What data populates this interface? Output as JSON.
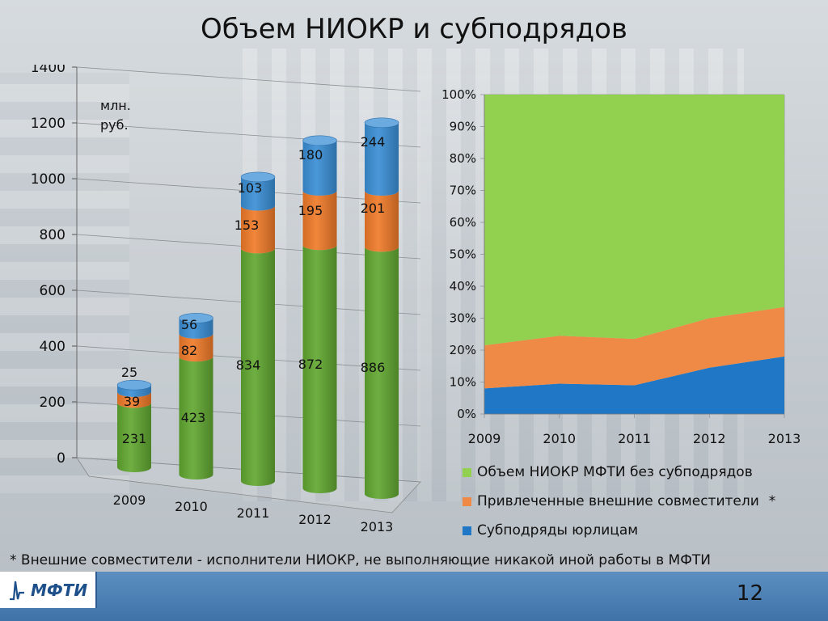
{
  "slide": {
    "title": "Объем НИОКР и субподрядов",
    "footnote": "* Внешние совместители - исполнители НИОКР, не выполняющие никакой иной работы в МФТИ",
    "page_number": "12",
    "logo_text": "МФТИ"
  },
  "colors": {
    "green": "#62a832",
    "orange": "#f07b2a",
    "blue": "#3b8fd6",
    "area_green": "#92d050",
    "area_orange": "#ee8a45",
    "area_blue": "#1f77c6"
  },
  "chart_data": [
    {
      "type": "bar",
      "stacked": true,
      "style": "3d-cylinder",
      "categories": [
        "2009",
        "2010",
        "2011",
        "2012",
        "2013"
      ],
      "series": [
        {
          "values": [
            231,
            423,
            834,
            872,
            886
          ],
          "color": "#62a832"
        },
        {
          "values": [
            39,
            82,
            153,
            195,
            201
          ],
          "color": "#f07b2a"
        },
        {
          "values": [
            25,
            56,
            103,
            180,
            244
          ],
          "color": "#3b8fd6"
        }
      ],
      "unit_label": "млн.\nруб.",
      "y_ticks": [
        0,
        200,
        400,
        600,
        800,
        1000,
        1200,
        1400
      ],
      "ylim": [
        0,
        1400
      ],
      "grid": true
    },
    {
      "type": "area",
      "stacked_percent": true,
      "x": [
        "2009",
        "2010",
        "2011",
        "2012",
        "2013"
      ],
      "series": [
        {
          "name": "Субподряды юрлицам",
          "values": [
            8,
            9.5,
            9,
            14.5,
            18
          ],
          "color": "#1f77c6"
        },
        {
          "name": "Привлеченные внешние совместители",
          "values": [
            13.5,
            15,
            14.5,
            15.5,
            15.5
          ],
          "color": "#ee8a45"
        },
        {
          "name": "Объем НИОКР МФТИ без субподрядов",
          "values": [
            78.5,
            75.5,
            76.5,
            70,
            66.5
          ],
          "color": "#92d050"
        }
      ],
      "y_ticks": [
        "0%",
        "10%",
        "20%",
        "30%",
        "40%",
        "50%",
        "60%",
        "70%",
        "80%",
        "90%",
        "100%"
      ],
      "ylim": [
        0,
        100
      ],
      "grid": true,
      "legend_position": "bottom",
      "legend_asterisk": "*"
    }
  ]
}
